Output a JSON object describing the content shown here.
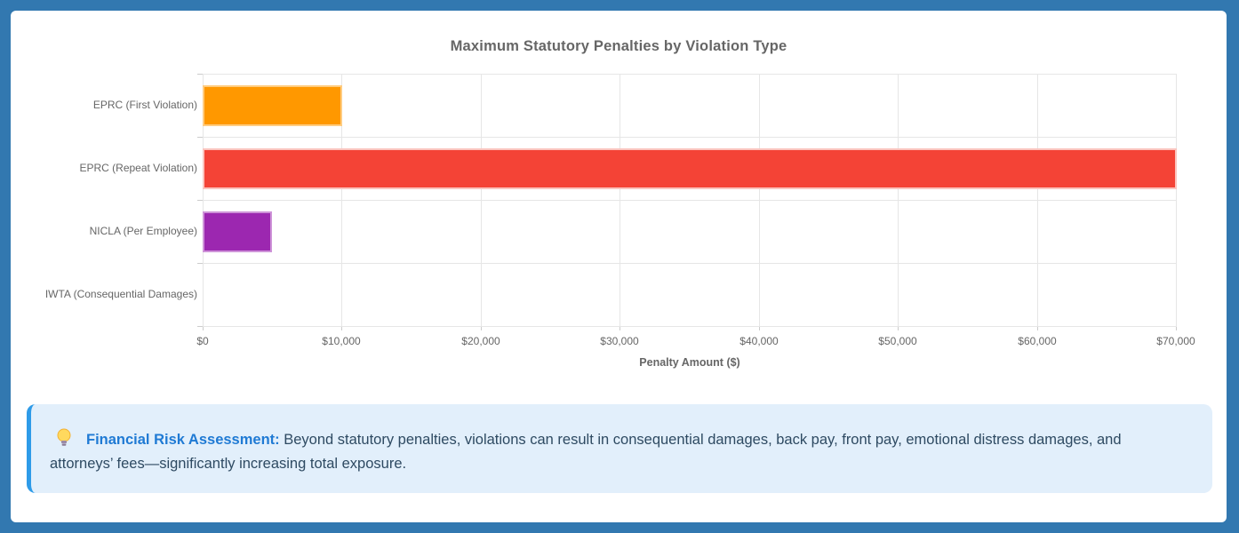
{
  "theme": {
    "frame_bg": "#3278b0",
    "card_bg": "#ffffff",
    "grid": "#e6e6e6",
    "tick": "#cccccc",
    "axis_text": "#666666",
    "title_text": "#666666",
    "info_bg": "#e2effb",
    "info_border": "#2e9be8",
    "info_title": "#1f7ad4",
    "info_text": "#2e4a62"
  },
  "chart_data": {
    "type": "bar",
    "orientation": "horizontal",
    "title": "Maximum Statutory Penalties by Violation Type",
    "categories": [
      "EPRC (First Violation)",
      "EPRC (Repeat Violation)",
      "NICLA (Per Employee)",
      "IWTA (Consequential Damages)"
    ],
    "values": [
      10000,
      70000,
      5000,
      0
    ],
    "bar_colors": [
      "#ff9800",
      "#f44336",
      "#9c27b0",
      "#9e9e9e"
    ],
    "bar_border_colors": [
      "#ffcc80",
      "#fbc4be",
      "#ce93d8",
      "#bdbdbd"
    ],
    "xlabel": "Penalty Amount ($)",
    "ylabel": "",
    "xlim": [
      0,
      70000
    ],
    "x_ticks": [
      0,
      10000,
      20000,
      30000,
      40000,
      50000,
      60000,
      70000
    ],
    "x_tick_labels": [
      "$0",
      "$10,000",
      "$20,000",
      "$30,000",
      "$40,000",
      "$50,000",
      "$60,000",
      "$70,000"
    ],
    "grid": true,
    "legend": false
  },
  "info_box": {
    "icon": "lightbulb",
    "title": "Financial Risk Assessment:",
    "text": "Beyond statutory penalties, violations can result in consequential damages, back pay, front pay, emotional distress damages, and attorneys’ fees—significantly increasing total exposure."
  }
}
